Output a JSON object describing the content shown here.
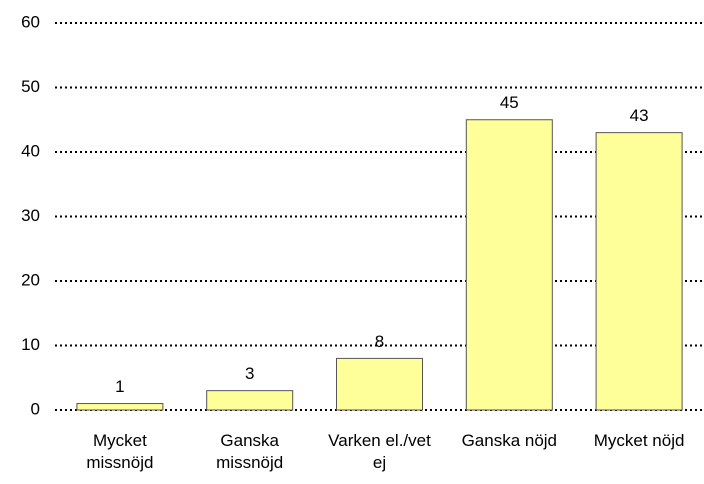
{
  "chart_data": {
    "type": "bar",
    "categories": [
      "Mycket missnöjd",
      "Ganska missnöjd",
      "Varken el./vet ej",
      "Ganska nöjd",
      "Mycket nöjd"
    ],
    "values": [
      1,
      3,
      8,
      45,
      43
    ],
    "color": "#ffff99",
    "ylim": [
      0,
      60
    ],
    "yticks": [
      0,
      10,
      20,
      30,
      40,
      50,
      60
    ],
    "grid": true
  }
}
